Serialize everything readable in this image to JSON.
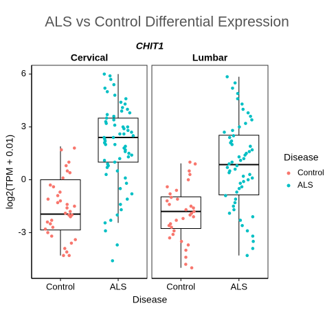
{
  "chart_data": {
    "type": "box",
    "title": "ALS vs Control Differential Expression",
    "subtitle": "CHIT1",
    "x_label": "Disease",
    "y_label": "log2(TPM + 0.01)",
    "categories": [
      "Control",
      "ALS"
    ],
    "legend_title": "Disease",
    "series": [
      {
        "name": "Control",
        "color": "#f8766d"
      },
      {
        "name": "ALS",
        "color": "#00bfc4"
      }
    ],
    "ylim": [
      -5.6,
      6.5
    ],
    "yticks": [
      -3,
      0,
      3,
      6
    ],
    "facets": [
      {
        "title": "Cervical",
        "boxes": [
          {
            "min": -4.3,
            "q1": -2.85,
            "median": -1.95,
            "q3": 0.0,
            "max": 1.9,
            "points": [
              1.8,
              1.7,
              1.0,
              0.8,
              0.5,
              0.4,
              0.1,
              -0.3,
              -0.4,
              -0.7,
              -0.9,
              -1.1,
              -1.2,
              -1.3,
              -1.4,
              -1.5,
              -1.6,
              -1.8,
              -1.9,
              -2.0,
              -2.0,
              -2.1,
              -2.3,
              -2.4,
              -2.5,
              -2.7,
              -2.8,
              -3.0,
              -3.2,
              -3.4,
              -3.6,
              -3.9,
              -4.1,
              -4.3,
              -4.3
            ]
          },
          {
            "min": -2.45,
            "q1": 1.0,
            "median": 2.4,
            "q3": 3.5,
            "max": 6.0,
            "points": [
              6.0,
              5.9,
              5.7,
              5.4,
              5.2,
              5.0,
              4.8,
              4.6,
              4.4,
              4.3,
              4.1,
              4.0,
              3.9,
              3.8,
              3.7,
              3.6,
              3.5,
              3.4,
              3.3,
              3.2,
              3.1,
              3.0,
              3.0,
              2.9,
              2.8,
              2.7,
              2.6,
              2.6,
              2.5,
              2.4,
              2.4,
              2.3,
              2.2,
              2.1,
              2.0,
              2.0,
              1.9,
              1.8,
              1.7,
              1.6,
              1.5,
              1.4,
              1.3,
              1.2,
              1.1,
              1.0,
              0.9,
              0.8,
              0.7,
              0.5,
              0.3,
              0.1,
              -0.2,
              -0.5,
              -0.8,
              -1.1,
              -1.4,
              -1.7,
              -2.0,
              -2.3,
              -2.45,
              -2.9,
              -3.7,
              -4.6
            ]
          }
        ]
      },
      {
        "title": "Lumbar",
        "boxes": [
          {
            "min": -5.0,
            "q1": -2.77,
            "median": -1.8,
            "q3": -0.97,
            "max": 0.93,
            "points": [
              1.0,
              0.9,
              0.5,
              0.3,
              0.0,
              -0.4,
              -0.6,
              -0.8,
              -1.0,
              -1.1,
              -1.2,
              -1.4,
              -1.5,
              -1.6,
              -1.7,
              -1.8,
              -1.9,
              -2.0,
              -2.1,
              -2.2,
              -2.3,
              -2.5,
              -2.6,
              -2.7,
              -2.9,
              -3.1,
              -3.3,
              -3.5,
              -3.7,
              -4.0,
              -4.4,
              -4.8,
              -5.0
            ]
          },
          {
            "min": -4.3,
            "q1": -0.86,
            "median": 0.86,
            "q3": 2.53,
            "max": 5.85,
            "points": [
              5.85,
              5.5,
              5.2,
              4.9,
              4.6,
              4.3,
              4.0,
              3.8,
              3.6,
              3.4,
              3.2,
              3.0,
              2.8,
              2.7,
              2.5,
              2.4,
              2.2,
              2.1,
              2.0,
              1.9,
              1.7,
              1.6,
              1.5,
              1.4,
              1.3,
              1.2,
              1.1,
              1.0,
              0.9,
              0.8,
              0.7,
              0.6,
              0.5,
              0.4,
              0.3,
              0.2,
              0.1,
              0.0,
              -0.1,
              -0.2,
              -0.4,
              -0.5,
              -0.7,
              -0.9,
              -1.1,
              -1.3,
              -1.5,
              -1.7,
              -1.9,
              -2.1,
              -2.3,
              -2.6,
              -2.9,
              -3.2,
              -3.5,
              -3.9,
              -4.3
            ]
          }
        ]
      }
    ]
  }
}
